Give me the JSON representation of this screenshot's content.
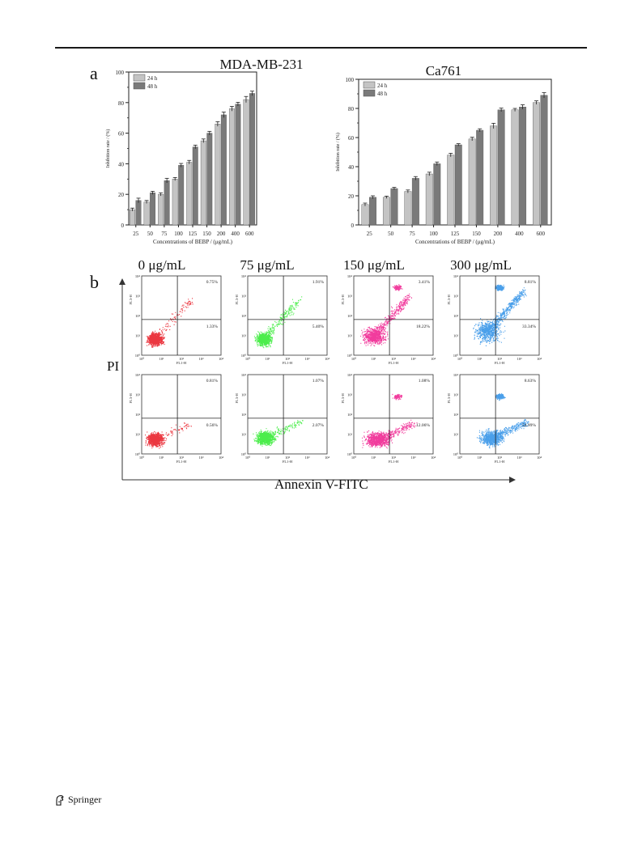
{
  "panel_a_label": "a",
  "panel_b_label": "b",
  "chart_data": [
    {
      "type": "bar",
      "title": "MDA-MB-231",
      "xlabel": "Concentrations of BEBP / (μg/mL)",
      "ylabel": "Inhibition rate / (%)",
      "ylim": [
        0,
        100
      ],
      "yticks": [
        "0",
        "20",
        "40",
        "60",
        "80",
        "100"
      ],
      "categories": [
        "25",
        "50",
        "75",
        "100",
        "125",
        "150",
        "200",
        "400",
        "600"
      ],
      "legend_position": "top-left",
      "series": [
        {
          "name": "24 h",
          "color": "#c4c4c4",
          "values": [
            10,
            15,
            20,
            30,
            41,
            55,
            66,
            76,
            82
          ],
          "errors": [
            1,
            1,
            1,
            1,
            1.2,
            1.2,
            1.5,
            1.5,
            2
          ]
        },
        {
          "name": "48 h",
          "color": "#7a7a7a",
          "values": [
            16,
            21,
            29,
            39,
            51,
            60,
            72,
            79,
            86
          ],
          "errors": [
            1.5,
            1,
            1.5,
            1.2,
            1.2,
            1.2,
            1.8,
            1.2,
            1.5
          ]
        }
      ]
    },
    {
      "type": "bar",
      "title": "Ca761",
      "xlabel": "Concentrations of BEBP / (μg/mL)",
      "ylabel": "Inhibition rate / (%)",
      "ylim": [
        0,
        100
      ],
      "yticks": [
        "0",
        "20",
        "40",
        "60",
        "80",
        "100"
      ],
      "categories": [
        "25",
        "50",
        "75",
        "100",
        "125",
        "150",
        "200",
        "400",
        "600"
      ],
      "legend_position": "top-left",
      "series": [
        {
          "name": "24 h",
          "color": "#c4c4c4",
          "values": [
            14,
            19,
            23,
            35,
            48,
            59,
            68,
            79,
            84
          ],
          "errors": [
            1,
            0.8,
            1,
            1.2,
            1.2,
            1.2,
            1.8,
            1,
            1.2
          ]
        },
        {
          "name": "48 h",
          "color": "#7a7a7a",
          "values": [
            19,
            25,
            32,
            42,
            55,
            65,
            79,
            81,
            89
          ],
          "errors": [
            1,
            0.8,
            1.2,
            1.2,
            0.8,
            1,
            1.2,
            1.5,
            1.8
          ]
        }
      ]
    }
  ],
  "flow": {
    "concentrations": [
      "0 μg/mL",
      "75 μg/mL",
      "150 μg/mL",
      "300 μg/mL"
    ],
    "y_axis_label": "PI",
    "x_axis_label": "Annexin V-FITC",
    "plot_x_label": "FL1-H",
    "plot_y_label": "FL3-H",
    "tick_labels": [
      "10⁰",
      "10¹",
      "10²",
      "10³",
      "10⁴"
    ],
    "colors": [
      "#e8141e",
      "#2bea2b",
      "#ee1a8c",
      "#2a8ee6"
    ],
    "rows": [
      [
        {
          "upper_right": "0.75%",
          "lower_right": "1.33%"
        },
        {
          "upper_right": "1.91%",
          "lower_right": "5.40%"
        },
        {
          "upper_right": "3.41%",
          "lower_right": "18.22%"
        },
        {
          "upper_right": "8.81%",
          "lower_right": "33.34%"
        }
      ],
      [
        {
          "upper_right": "0.81%",
          "lower_right": "0.56%"
        },
        {
          "upper_right": "1.07%",
          "lower_right": "2.07%"
        },
        {
          "upper_right": "1.08%",
          "lower_right": "12.06%"
        },
        {
          "upper_right": "8.63%",
          "lower_right": "54.99%"
        }
      ]
    ]
  },
  "footer": {
    "publisher": "Springer",
    "logo_icon": "springer-horse-icon"
  }
}
